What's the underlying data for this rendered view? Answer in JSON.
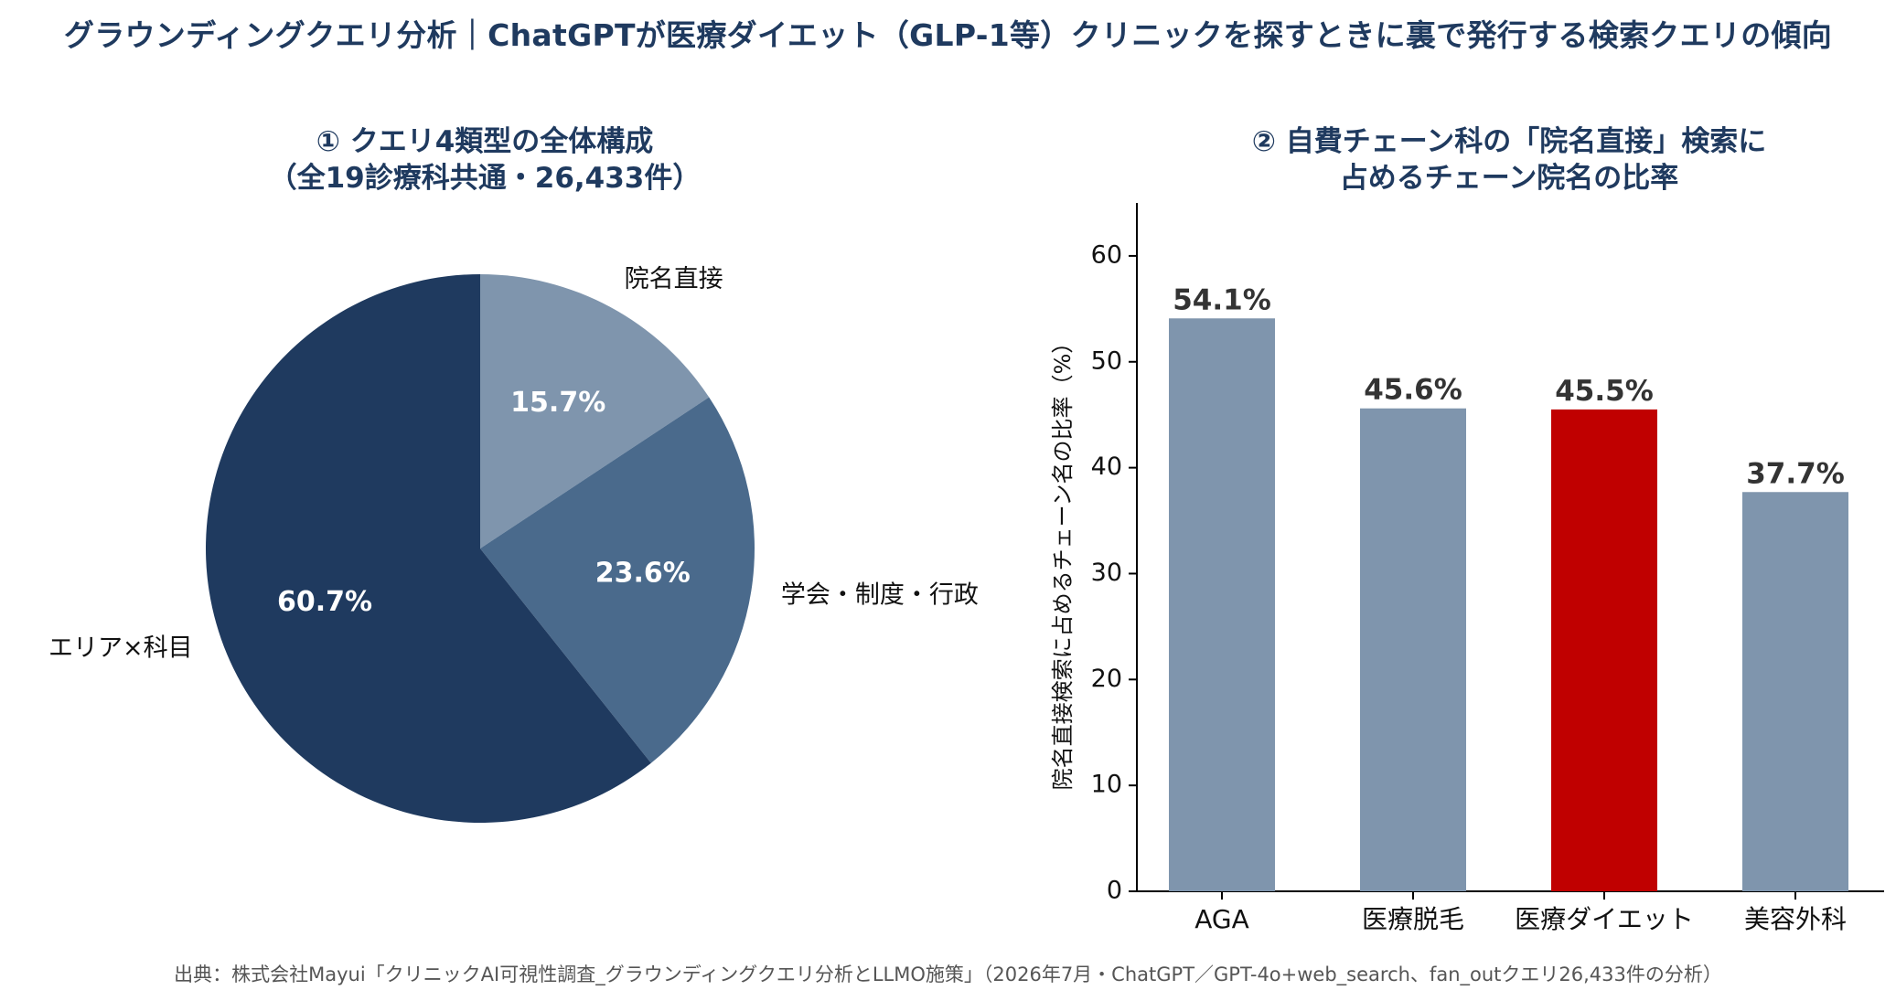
{
  "header": {
    "title": "グラウンディングクエリ分析｜ChatGPTが医療ダイエット（GLP-1等）クリニックを探すときに裏で発行する検索クエリの傾向"
  },
  "footer": {
    "source": "出典：株式会社Mayui「クリニックAI可視性調査_グラウンディングクエリ分析とLLMO施策」（2026年7月・ChatGPT／GPT-4o+web_search、fan_outクエリ26,433件の分析）"
  },
  "chart_data": [
    {
      "type": "pie",
      "title_lines": [
        "① クエリ4類型の全体構成",
        "（全19診療科共通・26,433件）"
      ],
      "slices": [
        {
          "label": "院名直接",
          "value": 15.7,
          "value_label": "15.7%",
          "color": "#7f95ad"
        },
        {
          "label": "学会・制度・行政",
          "value": 23.6,
          "value_label": "23.6%",
          "color": "#4a6a8c"
        },
        {
          "label": "エリア×科目",
          "value": 60.7,
          "value_label": "60.7%",
          "color": "#1f3a5f"
        }
      ],
      "start": "12 o'clock",
      "direction": "clockwise"
    },
    {
      "type": "bar",
      "title_lines": [
        "② 自費チェーン科の「院名直接」検索に",
        "占めるチェーン院名の比率"
      ],
      "categories": [
        "AGA",
        "医療脱毛",
        "医療ダイエット",
        "美容外科"
      ],
      "values": [
        54.1,
        45.6,
        45.5,
        37.7
      ],
      "value_labels": [
        "54.1%",
        "45.6%",
        "45.5%",
        "37.7%"
      ],
      "colors": [
        "#7f95ad",
        "#7f95ad",
        "#c00000",
        "#7f95ad"
      ],
      "ylabel": "院名直接検索に占めるチェーン名の比率（%）",
      "ylim": [
        0,
        65
      ],
      "yticks": [
        0,
        10,
        20,
        30,
        40,
        50,
        60
      ],
      "grid": false
    }
  ]
}
